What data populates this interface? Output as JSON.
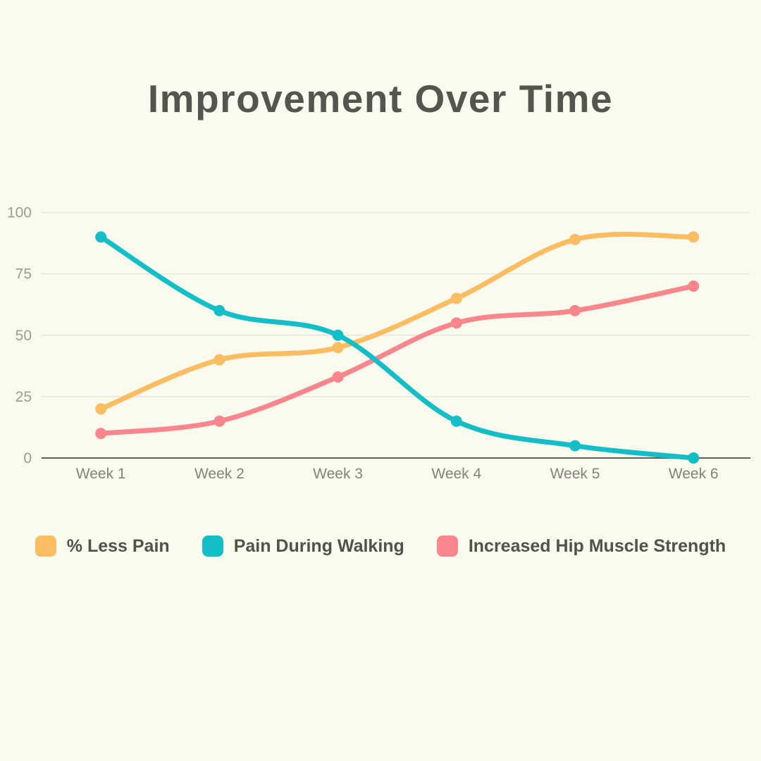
{
  "page": {
    "background_color": "#FAFAEE"
  },
  "title": {
    "text": "Improvement Over Time",
    "color": "#555550"
  },
  "chart_data": {
    "type": "line",
    "title": "Improvement Over Time",
    "categories": [
      "Week 1",
      "Week 2",
      "Week 3",
      "Week 4",
      "Week 5",
      "Week 6"
    ],
    "series": [
      {
        "name": "% Less Pain",
        "color": "#FABD61",
        "values": [
          20,
          40,
          45,
          65,
          89,
          90
        ]
      },
      {
        "name": "Pain During Walking",
        "color": "#13BEC6",
        "values": [
          90,
          60,
          50,
          15,
          5,
          0
        ]
      },
      {
        "name": "Increased Hip Muscle Strength",
        "color": "#F9868C",
        "values": [
          10,
          15,
          33,
          55,
          60,
          70
        ]
      }
    ],
    "yticks": [
      0,
      25,
      50,
      75,
      100
    ],
    "ylim": [
      0,
      100
    ],
    "grid": true,
    "smooth": true,
    "point_markers": true,
    "legend_position": "bottom",
    "gridline_color": "#E5E5DC",
    "axis_line_color": "#5F5F58",
    "y_label_color": "#9D9C93",
    "x_label_color": "#84837B"
  }
}
